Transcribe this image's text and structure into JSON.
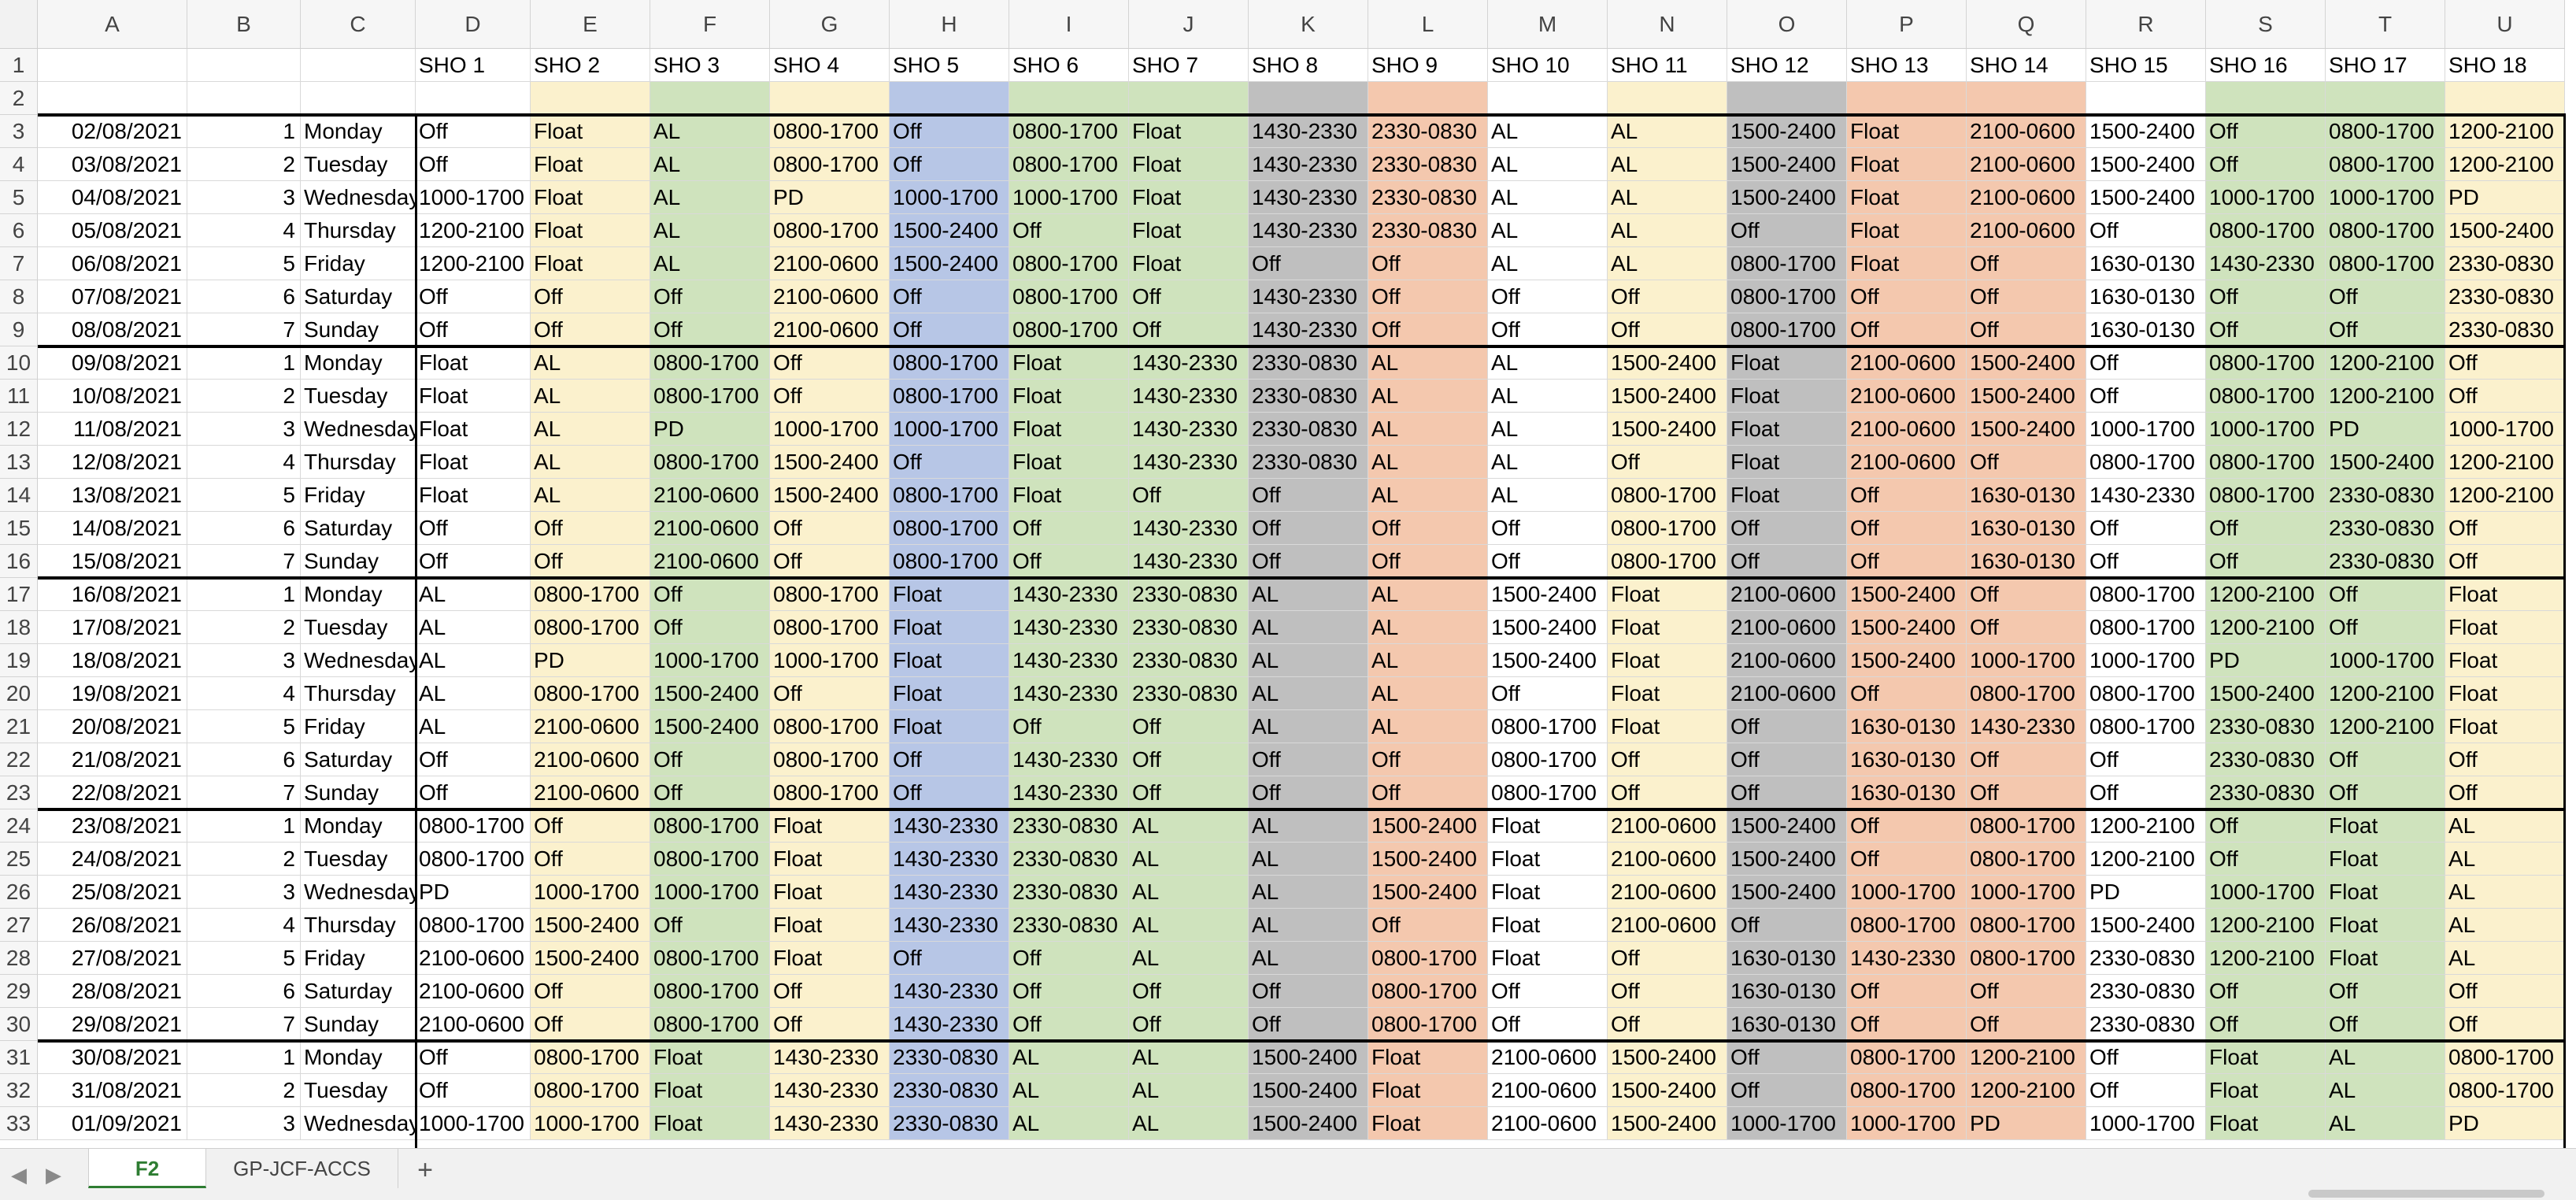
{
  "sheet": {
    "columns": [
      "A",
      "B",
      "C",
      "D",
      "E",
      "F",
      "G",
      "H",
      "I",
      "J",
      "K",
      "L",
      "M",
      "N",
      "O",
      "P",
      "Q",
      "R",
      "S",
      "T",
      "U"
    ],
    "colors": {
      "white": "#ffffff",
      "yellow": "#fbf1cd",
      "green": "#cfe3bd",
      "blue": "#b7c6e6",
      "grey": "#bfbfbf",
      "peach": "#f4c8ae"
    },
    "column_fills": [
      "white",
      "white",
      "white",
      "white",
      "yellow",
      "green",
      "yellow",
      "blue",
      "green",
      "green",
      "grey",
      "peach",
      "white",
      "yellow",
      "grey",
      "peach",
      "peach",
      "white",
      "green",
      "green",
      "yellow"
    ],
    "header_row": [
      "",
      "",
      "",
      "SHO 1",
      "SHO 2",
      "SHO 3",
      "SHO 4",
      "SHO 5",
      "SHO 6",
      "SHO 7",
      "SHO 8",
      "SHO 9",
      "SHO 10",
      "SHO 11",
      "SHO 12",
      "SHO 13",
      "SHO 14",
      "SHO 15",
      "SHO 16",
      "SHO 17",
      "SHO 18"
    ],
    "rows": [
      {
        "n": "3",
        "c": [
          "02/08/2021",
          "1",
          "Monday",
          "Off",
          "Float",
          "AL",
          "0800-1700",
          "Off",
          "0800-1700",
          "Float",
          "1430-2330",
          "2330-0830",
          "AL",
          "AL",
          "1500-2400",
          "Float",
          "2100-0600",
          "1500-2400",
          "Off",
          "0800-1700",
          "1200-2100"
        ]
      },
      {
        "n": "4",
        "c": [
          "03/08/2021",
          "2",
          "Tuesday",
          "Off",
          "Float",
          "AL",
          "0800-1700",
          "Off",
          "0800-1700",
          "Float",
          "1430-2330",
          "2330-0830",
          "AL",
          "AL",
          "1500-2400",
          "Float",
          "2100-0600",
          "1500-2400",
          "Off",
          "0800-1700",
          "1200-2100"
        ]
      },
      {
        "n": "5",
        "c": [
          "04/08/2021",
          "3",
          "Wednesday",
          "1000-1700",
          "Float",
          "AL",
          "PD",
          "1000-1700",
          "1000-1700",
          "Float",
          "1430-2330",
          "2330-0830",
          "AL",
          "AL",
          "1500-2400",
          "Float",
          "2100-0600",
          "1500-2400",
          "1000-1700",
          "1000-1700",
          "PD"
        ]
      },
      {
        "n": "6",
        "c": [
          "05/08/2021",
          "4",
          "Thursday",
          "1200-2100",
          "Float",
          "AL",
          "0800-1700",
          "1500-2400",
          "Off",
          "Float",
          "1430-2330",
          "2330-0830",
          "AL",
          "AL",
          "Off",
          "Float",
          "2100-0600",
          "Off",
          "0800-1700",
          "0800-1700",
          "1500-2400"
        ]
      },
      {
        "n": "7",
        "c": [
          "06/08/2021",
          "5",
          "Friday",
          "1200-2100",
          "Float",
          "AL",
          "2100-0600",
          "1500-2400",
          "0800-1700",
          "Float",
          "Off",
          "Off",
          "AL",
          "AL",
          "0800-1700",
          "Float",
          "Off",
          "1630-0130",
          "1430-2330",
          "0800-1700",
          "2330-0830"
        ]
      },
      {
        "n": "8",
        "c": [
          "07/08/2021",
          "6",
          "Saturday",
          "Off",
          "Off",
          "Off",
          "2100-0600",
          "Off",
          "0800-1700",
          "Off",
          "1430-2330",
          "Off",
          "Off",
          "Off",
          "0800-1700",
          "Off",
          "Off",
          "1630-0130",
          "Off",
          "Off",
          "2330-0830"
        ]
      },
      {
        "n": "9",
        "c": [
          "08/08/2021",
          "7",
          "Sunday",
          "Off",
          "Off",
          "Off",
          "2100-0600",
          "Off",
          "0800-1700",
          "Off",
          "1430-2330",
          "Off",
          "Off",
          "Off",
          "0800-1700",
          "Off",
          "Off",
          "1630-0130",
          "Off",
          "Off",
          "2330-0830"
        ]
      },
      {
        "n": "10",
        "c": [
          "09/08/2021",
          "1",
          "Monday",
          "Float",
          "AL",
          "0800-1700",
          "Off",
          "0800-1700",
          "Float",
          "1430-2330",
          "2330-0830",
          "AL",
          "AL",
          "1500-2400",
          "Float",
          "2100-0600",
          "1500-2400",
          "Off",
          "0800-1700",
          "1200-2100",
          "Off"
        ]
      },
      {
        "n": "11",
        "c": [
          "10/08/2021",
          "2",
          "Tuesday",
          "Float",
          "AL",
          "0800-1700",
          "Off",
          "0800-1700",
          "Float",
          "1430-2330",
          "2330-0830",
          "AL",
          "AL",
          "1500-2400",
          "Float",
          "2100-0600",
          "1500-2400",
          "Off",
          "0800-1700",
          "1200-2100",
          "Off"
        ]
      },
      {
        "n": "12",
        "c": [
          "11/08/2021",
          "3",
          "Wednesday",
          "Float",
          "AL",
          "PD",
          "1000-1700",
          "1000-1700",
          "Float",
          "1430-2330",
          "2330-0830",
          "AL",
          "AL",
          "1500-2400",
          "Float",
          "2100-0600",
          "1500-2400",
          "1000-1700",
          "1000-1700",
          "PD",
          "1000-1700"
        ]
      },
      {
        "n": "13",
        "c": [
          "12/08/2021",
          "4",
          "Thursday",
          "Float",
          "AL",
          "0800-1700",
          "1500-2400",
          "Off",
          "Float",
          "1430-2330",
          "2330-0830",
          "AL",
          "AL",
          "Off",
          "Float",
          "2100-0600",
          "Off",
          "0800-1700",
          "0800-1700",
          "1500-2400",
          "1200-2100"
        ]
      },
      {
        "n": "14",
        "c": [
          "13/08/2021",
          "5",
          "Friday",
          "Float",
          "AL",
          "2100-0600",
          "1500-2400",
          "0800-1700",
          "Float",
          "Off",
          "Off",
          "AL",
          "AL",
          "0800-1700",
          "Float",
          "Off",
          "1630-0130",
          "1430-2330",
          "0800-1700",
          "2330-0830",
          "1200-2100"
        ]
      },
      {
        "n": "15",
        "c": [
          "14/08/2021",
          "6",
          "Saturday",
          "Off",
          "Off",
          "2100-0600",
          "Off",
          "0800-1700",
          "Off",
          "1430-2330",
          "Off",
          "Off",
          "Off",
          "0800-1700",
          "Off",
          "Off",
          "1630-0130",
          "Off",
          "Off",
          "2330-0830",
          "Off"
        ]
      },
      {
        "n": "16",
        "c": [
          "15/08/2021",
          "7",
          "Sunday",
          "Off",
          "Off",
          "2100-0600",
          "Off",
          "0800-1700",
          "Off",
          "1430-2330",
          "Off",
          "Off",
          "Off",
          "0800-1700",
          "Off",
          "Off",
          "1630-0130",
          "Off",
          "Off",
          "2330-0830",
          "Off"
        ]
      },
      {
        "n": "17",
        "c": [
          "16/08/2021",
          "1",
          "Monday",
          "AL",
          "0800-1700",
          "Off",
          "0800-1700",
          "Float",
          "1430-2330",
          "2330-0830",
          "AL",
          "AL",
          "1500-2400",
          "Float",
          "2100-0600",
          "1500-2400",
          "Off",
          "0800-1700",
          "1200-2100",
          "Off",
          "Float"
        ]
      },
      {
        "n": "18",
        "c": [
          "17/08/2021",
          "2",
          "Tuesday",
          "AL",
          "0800-1700",
          "Off",
          "0800-1700",
          "Float",
          "1430-2330",
          "2330-0830",
          "AL",
          "AL",
          "1500-2400",
          "Float",
          "2100-0600",
          "1500-2400",
          "Off",
          "0800-1700",
          "1200-2100",
          "Off",
          "Float"
        ]
      },
      {
        "n": "19",
        "c": [
          "18/08/2021",
          "3",
          "Wednesday",
          "AL",
          "PD",
          "1000-1700",
          "1000-1700",
          "Float",
          "1430-2330",
          "2330-0830",
          "AL",
          "AL",
          "1500-2400",
          "Float",
          "2100-0600",
          "1500-2400",
          "1000-1700",
          "1000-1700",
          "PD",
          "1000-1700",
          "Float"
        ]
      },
      {
        "n": "20",
        "c": [
          "19/08/2021",
          "4",
          "Thursday",
          "AL",
          "0800-1700",
          "1500-2400",
          "Off",
          "Float",
          "1430-2330",
          "2330-0830",
          "AL",
          "AL",
          "Off",
          "Float",
          "2100-0600",
          "Off",
          "0800-1700",
          "0800-1700",
          "1500-2400",
          "1200-2100",
          "Float"
        ]
      },
      {
        "n": "21",
        "c": [
          "20/08/2021",
          "5",
          "Friday",
          "AL",
          "2100-0600",
          "1500-2400",
          "0800-1700",
          "Float",
          "Off",
          "Off",
          "AL",
          "AL",
          "0800-1700",
          "Float",
          "Off",
          "1630-0130",
          "1430-2330",
          "0800-1700",
          "2330-0830",
          "1200-2100",
          "Float"
        ]
      },
      {
        "n": "22",
        "c": [
          "21/08/2021",
          "6",
          "Saturday",
          "Off",
          "2100-0600",
          "Off",
          "0800-1700",
          "Off",
          "1430-2330",
          "Off",
          "Off",
          "Off",
          "0800-1700",
          "Off",
          "Off",
          "1630-0130",
          "Off",
          "Off",
          "2330-0830",
          "Off",
          "Off"
        ]
      },
      {
        "n": "23",
        "c": [
          "22/08/2021",
          "7",
          "Sunday",
          "Off",
          "2100-0600",
          "Off",
          "0800-1700",
          "Off",
          "1430-2330",
          "Off",
          "Off",
          "Off",
          "0800-1700",
          "Off",
          "Off",
          "1630-0130",
          "Off",
          "Off",
          "2330-0830",
          "Off",
          "Off"
        ]
      },
      {
        "n": "24",
        "c": [
          "23/08/2021",
          "1",
          "Monday",
          "0800-1700",
          "Off",
          "0800-1700",
          "Float",
          "1430-2330",
          "2330-0830",
          "AL",
          "AL",
          "1500-2400",
          "Float",
          "2100-0600",
          "1500-2400",
          "Off",
          "0800-1700",
          "1200-2100",
          "Off",
          "Float",
          "AL"
        ]
      },
      {
        "n": "25",
        "c": [
          "24/08/2021",
          "2",
          "Tuesday",
          "0800-1700",
          "Off",
          "0800-1700",
          "Float",
          "1430-2330",
          "2330-0830",
          "AL",
          "AL",
          "1500-2400",
          "Float",
          "2100-0600",
          "1500-2400",
          "Off",
          "0800-1700",
          "1200-2100",
          "Off",
          "Float",
          "AL"
        ]
      },
      {
        "n": "26",
        "c": [
          "25/08/2021",
          "3",
          "Wednesday",
          "PD",
          "1000-1700",
          "1000-1700",
          "Float",
          "1430-2330",
          "2330-0830",
          "AL",
          "AL",
          "1500-2400",
          "Float",
          "2100-0600",
          "1500-2400",
          "1000-1700",
          "1000-1700",
          "PD",
          "1000-1700",
          "Float",
          "AL"
        ]
      },
      {
        "n": "27",
        "c": [
          "26/08/2021",
          "4",
          "Thursday",
          "0800-1700",
          "1500-2400",
          "Off",
          "Float",
          "1430-2330",
          "2330-0830",
          "AL",
          "AL",
          "Off",
          "Float",
          "2100-0600",
          "Off",
          "0800-1700",
          "0800-1700",
          "1500-2400",
          "1200-2100",
          "Float",
          "AL"
        ]
      },
      {
        "n": "28",
        "c": [
          "27/08/2021",
          "5",
          "Friday",
          "2100-0600",
          "1500-2400",
          "0800-1700",
          "Float",
          "Off",
          "Off",
          "AL",
          "AL",
          "0800-1700",
          "Float",
          "Off",
          "1630-0130",
          "1430-2330",
          "0800-1700",
          "2330-0830",
          "1200-2100",
          "Float",
          "AL"
        ]
      },
      {
        "n": "29",
        "c": [
          "28/08/2021",
          "6",
          "Saturday",
          "2100-0600",
          "Off",
          "0800-1700",
          "Off",
          "1430-2330",
          "Off",
          "Off",
          "Off",
          "0800-1700",
          "Off",
          "Off",
          "1630-0130",
          "Off",
          "Off",
          "2330-0830",
          "Off",
          "Off",
          "Off"
        ]
      },
      {
        "n": "30",
        "c": [
          "29/08/2021",
          "7",
          "Sunday",
          "2100-0600",
          "Off",
          "0800-1700",
          "Off",
          "1430-2330",
          "Off",
          "Off",
          "Off",
          "0800-1700",
          "Off",
          "Off",
          "1630-0130",
          "Off",
          "Off",
          "2330-0830",
          "Off",
          "Off",
          "Off"
        ]
      },
      {
        "n": "31",
        "c": [
          "30/08/2021",
          "1",
          "Monday",
          "Off",
          "0800-1700",
          "Float",
          "1430-2330",
          "2330-0830",
          "AL",
          "AL",
          "1500-2400",
          "Float",
          "2100-0600",
          "1500-2400",
          "Off",
          "0800-1700",
          "1200-2100",
          "Off",
          "Float",
          "AL",
          "0800-1700"
        ]
      },
      {
        "n": "32",
        "c": [
          "31/08/2021",
          "2",
          "Tuesday",
          "Off",
          "0800-1700",
          "Float",
          "1430-2330",
          "2330-0830",
          "AL",
          "AL",
          "1500-2400",
          "Float",
          "2100-0600",
          "1500-2400",
          "Off",
          "0800-1700",
          "1200-2100",
          "Off",
          "Float",
          "AL",
          "0800-1700"
        ]
      },
      {
        "n": "33",
        "c": [
          "01/09/2021",
          "3",
          "Wednesday",
          "1000-1700",
          "1000-1700",
          "Float",
          "1430-2330",
          "2330-0830",
          "AL",
          "AL",
          "1500-2400",
          "Float",
          "2100-0600",
          "1500-2400",
          "1000-1700",
          "1000-1700",
          "PD",
          "1000-1700",
          "Float",
          "AL",
          "PD"
        ]
      }
    ]
  },
  "tabs": {
    "sheets": [
      "F2",
      "GP-JCF-ACCS"
    ],
    "active": "F2",
    "add_label": "+",
    "prev_icon": "◀",
    "next_icon": "▶"
  }
}
